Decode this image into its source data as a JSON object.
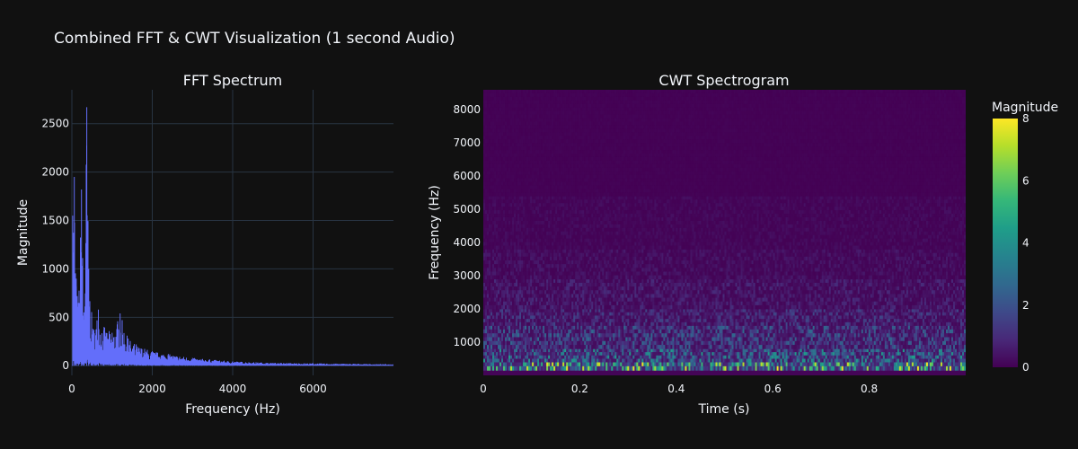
{
  "figure": {
    "title": "Combined FFT & CWT Visualization (1 second Audio)"
  },
  "chart_data": [
    {
      "type": "line",
      "title": "FFT Spectrum",
      "xlabel": "Frequency (Hz)",
      "ylabel": "Magnitude",
      "xlim": [
        0,
        8000
      ],
      "ylim": [
        -100,
        2850
      ],
      "xticks": [
        0,
        2000,
        4000,
        6000
      ],
      "yticks": [
        0,
        500,
        1000,
        1500,
        2000,
        2500
      ],
      "grid": true,
      "line_color": "#636efa",
      "peaks": [
        {
          "x": 20,
          "y": 1550
        },
        {
          "x": 60,
          "y": 1950
        },
        {
          "x": 110,
          "y": 900
        },
        {
          "x": 160,
          "y": 650
        },
        {
          "x": 240,
          "y": 1820
        },
        {
          "x": 300,
          "y": 550
        },
        {
          "x": 370,
          "y": 2670
        },
        {
          "x": 420,
          "y": 1000
        },
        {
          "x": 520,
          "y": 380
        },
        {
          "x": 660,
          "y": 580
        },
        {
          "x": 800,
          "y": 400
        },
        {
          "x": 1000,
          "y": 340
        },
        {
          "x": 1200,
          "y": 540
        },
        {
          "x": 1400,
          "y": 280
        },
        {
          "x": 1600,
          "y": 220
        },
        {
          "x": 2000,
          "y": 150
        },
        {
          "x": 2400,
          "y": 120
        },
        {
          "x": 3000,
          "y": 80
        },
        {
          "x": 4000,
          "y": 45
        },
        {
          "x": 5000,
          "y": 30
        },
        {
          "x": 6000,
          "y": 25
        },
        {
          "x": 7000,
          "y": 20
        },
        {
          "x": 8000,
          "y": 15
        }
      ]
    },
    {
      "type": "heatmap",
      "title": "CWT Spectrogram",
      "xlabel": "Time (s)",
      "ylabel": "Frequency (Hz)",
      "xlim": [
        0,
        1
      ],
      "ylim": [
        0,
        8600
      ],
      "xticks": [
        0,
        0.2,
        0.4,
        0.6,
        0.8
      ],
      "yticks": [
        1000,
        2000,
        3000,
        4000,
        5000,
        6000,
        7000,
        8000
      ],
      "colorscale": "Viridis",
      "colorbar": {
        "title": "Magnitude",
        "ticks": [
          0,
          2,
          4,
          6,
          8
        ],
        "range": [
          0,
          8
        ]
      },
      "frequency_bands": [
        {
          "low": 150,
          "high": 400,
          "typical_magnitude": 4.5
        },
        {
          "low": 400,
          "high": 800,
          "typical_magnitude": 2.5
        },
        {
          "low": 800,
          "high": 1500,
          "typical_magnitude": 1.6
        },
        {
          "low": 1500,
          "high": 2000,
          "typical_magnitude": 1.0
        },
        {
          "low": 2000,
          "high": 2900,
          "typical_magnitude": 0.6
        },
        {
          "low": 2900,
          "high": 3800,
          "typical_magnitude": 0.35
        },
        {
          "low": 3800,
          "high": 5400,
          "typical_magnitude": 0.2
        },
        {
          "low": 5400,
          "high": 8600,
          "typical_magnitude": 0.05
        }
      ]
    }
  ],
  "colors": {
    "background": "#111111",
    "grid": "#283442",
    "text": "#f2f5fa",
    "fft_line": "#636efa"
  }
}
